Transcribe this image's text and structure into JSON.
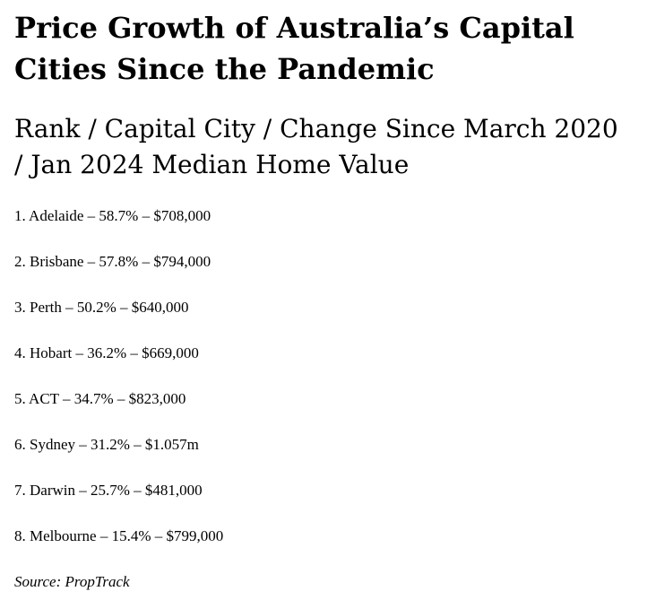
{
  "article": {
    "title_line1": "Price Growth of Australia’s Capital",
    "title_line2": "Cities Since the Pandemic",
    "subtitle_line1": "Rank / Capital City / Change Since March 2020",
    "subtitle_line2": "/ Jan 2024 Median Home Value",
    "items": [
      "1. Adelaide – 58.7% – $708,000",
      "2. Brisbane – 57.8% – $794,000",
      "3. Perth – 50.2% – $640,000",
      "4. Hobart – 36.2% – $669,000",
      "5. ACT – 34.7% – $823,000",
      "6. Sydney – 31.2% – $1.057m",
      "7. Darwin – 25.7% – $481,000",
      "8. Melbourne – 15.4% – $799,000"
    ],
    "source": "Source: PropTrack"
  }
}
